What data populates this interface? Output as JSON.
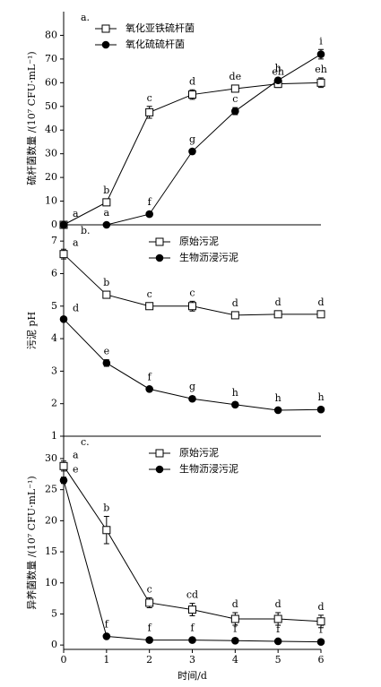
{
  "chart_data": [
    {
      "type": "line",
      "panel_label": "a.",
      "ylabel": "硫杆菌数量 /(10⁷ CFU·mL⁻¹)",
      "x": [
        0,
        1,
        2,
        3,
        4,
        5,
        6
      ],
      "xlim": [
        0,
        6
      ],
      "ylim": [
        0,
        90
      ],
      "yticks": [
        0,
        10,
        20,
        30,
        40,
        50,
        60,
        70,
        80
      ],
      "legend": "top-left",
      "series": [
        {
          "name": "氧化亚铁硫杆菌",
          "color": "#000000",
          "marker": "open-square",
          "values": [
            0,
            9.5,
            47.5,
            55,
            57.5,
            59.5,
            60
          ],
          "errors": [
            0,
            0.5,
            2.5,
            2,
            1.2,
            1.5,
            2
          ],
          "letters": [
            "a",
            "b",
            "c",
            "d",
            "de",
            "eh",
            "eh"
          ]
        },
        {
          "name": "氧化硫硫杆菌",
          "color": "#000000",
          "marker": "filled-circle",
          "values": [
            0,
            0,
            4.5,
            31,
            48,
            61,
            72
          ],
          "errors": [
            0,
            0,
            0.5,
            0.7,
            1.5,
            1,
            2
          ],
          "letters": [
            null,
            "a",
            "f",
            "g",
            "c",
            "h",
            "i"
          ]
        }
      ]
    },
    {
      "type": "line",
      "panel_label": "b.",
      "ylabel": "污泥 pH",
      "x": [
        0,
        1,
        2,
        3,
        4,
        5,
        6
      ],
      "xlim": [
        0,
        6
      ],
      "ylim": [
        1,
        7.5
      ],
      "yticks": [
        1,
        2,
        3,
        4,
        5,
        6,
        7
      ],
      "legend": "top-center",
      "series": [
        {
          "name": "原始污泥",
          "color": "#000000",
          "marker": "open-square",
          "values": [
            6.6,
            5.35,
            5.0,
            5.0,
            4.72,
            4.75,
            4.75
          ],
          "errors": [
            0.15,
            0.07,
            0.05,
            0.15,
            0.05,
            0.05,
            0.05
          ],
          "letters": [
            "a",
            "b",
            "c",
            "c",
            "d",
            "d",
            "d"
          ]
        },
        {
          "name": "生物沥浸污泥",
          "color": "#000000",
          "marker": "filled-circle",
          "values": [
            4.6,
            3.25,
            2.45,
            2.15,
            1.97,
            1.8,
            1.82
          ],
          "errors": [
            0.05,
            0.1,
            0.05,
            0.05,
            0.05,
            0.05,
            0.05
          ],
          "letters": [
            "d",
            "e",
            "f",
            "g",
            "h",
            "h",
            "h"
          ]
        }
      ]
    },
    {
      "type": "line",
      "panel_label": "c.",
      "ylabel": "异养菌数量 /(10⁷ CFU·mL⁻¹)",
      "xlabel": "时间/d",
      "x": [
        0,
        1,
        2,
        3,
        4,
        5,
        6
      ],
      "xlim": [
        0,
        6
      ],
      "xticks": [
        0,
        1,
        2,
        3,
        4,
        5,
        6
      ],
      "ylim": [
        -0.7,
        33.6
      ],
      "yticks": [
        0,
        5,
        10,
        15,
        20,
        25,
        30
      ],
      "legend": "top-center",
      "series": [
        {
          "name": "原始污泥",
          "color": "#000000",
          "marker": "open-square",
          "values": [
            28.8,
            18.5,
            6.8,
            5.7,
            4.2,
            4.2,
            3.8
          ],
          "errors": [
            0.8,
            2.2,
            0.8,
            1.0,
            1.0,
            1.0,
            1.0
          ],
          "letters": [
            "a",
            "b",
            "c",
            "cd",
            "d",
            "d",
            "d"
          ]
        },
        {
          "name": "生物沥浸污泥",
          "color": "#000000",
          "marker": "filled-circle",
          "values": [
            26.5,
            1.4,
            0.8,
            0.8,
            0.7,
            0.6,
            0.5
          ],
          "errors": [
            0.5,
            0.3,
            0.2,
            0.2,
            0.2,
            0.2,
            0.2
          ],
          "letters": [
            "e",
            "f",
            "f",
            "f",
            "f",
            "f",
            "f"
          ]
        }
      ]
    }
  ]
}
